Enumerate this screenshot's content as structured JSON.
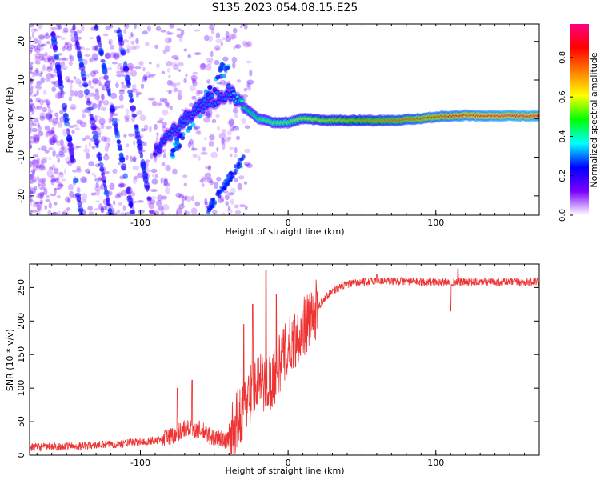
{
  "title": "S135.2023.054.08.15.E25",
  "chart_data": [
    {
      "type": "heatmap",
      "xlabel": "Height of straight line (km)",
      "ylabel": "Frequency (Hz)",
      "xlim": [
        -175,
        170
      ],
      "ylim": [
        -25,
        24.5
      ],
      "x_ticks": [
        "-100",
        "0",
        "100"
      ],
      "x_tick_values": [
        -100,
        0,
        100
      ],
      "y_ticks": [
        "-20",
        "-10",
        "0",
        "10",
        "20"
      ],
      "y_tick_values": [
        -20,
        -10,
        0,
        10,
        20
      ],
      "colorbar": {
        "label": "Normalized spectral amplitude",
        "range": [
          0,
          0.97
        ],
        "ticks": [
          "0.0",
          "0.2",
          "0.4",
          "0.6",
          "0.8"
        ],
        "tick_values": [
          0.0,
          0.2,
          0.4,
          0.6,
          0.8
        ],
        "colors": [
          "#ffffff",
          "#7a00ff",
          "#0000ff",
          "#00ffff",
          "#00ff00",
          "#ffff00",
          "#ff8000",
          "#ff0000",
          "#ff0080"
        ]
      },
      "ridge": {
        "x": [
          -90,
          -80,
          -70,
          -60,
          -50,
          -40,
          -30,
          -20,
          -10,
          0,
          10,
          30,
          50,
          70,
          90,
          100,
          120,
          150,
          170
        ],
        "frequency": [
          -9,
          -4,
          0,
          3,
          5,
          7,
          3,
          0,
          -1,
          -1,
          0,
          -0.5,
          -0.5,
          -0.5,
          0,
          0.5,
          0.8,
          0.7,
          0.7
        ],
        "amplitude": [
          0.25,
          0.3,
          0.3,
          0.3,
          0.3,
          0.3,
          0.45,
          0.5,
          0.55,
          0.55,
          0.6,
          0.65,
          0.7,
          0.75,
          0.8,
          0.82,
          0.85,
          0.9,
          0.9
        ]
      }
    },
    {
      "type": "line",
      "xlabel": "Height of straight line (km)",
      "ylabel": "SNR (10 * v/v)",
      "xlim": [
        -175,
        170
      ],
      "ylim": [
        0,
        285
      ],
      "x_ticks": [
        "-100",
        "0",
        "100"
      ],
      "x_tick_values": [
        -100,
        0,
        100
      ],
      "y_ticks": [
        "0",
        "50",
        "100",
        "150",
        "200",
        "250"
      ],
      "y_tick_values": [
        0,
        50,
        100,
        150,
        200,
        250
      ],
      "color": "#ee3333",
      "trend": {
        "x": [
          -175,
          -150,
          -120,
          -100,
          -90,
          -80,
          -70,
          -60,
          -50,
          -40,
          -35,
          -30,
          -25,
          -20,
          -15,
          -10,
          -5,
          0,
          5,
          10,
          15,
          20,
          25,
          30,
          40,
          60,
          100,
          170
        ],
        "y": [
          12,
          13,
          16,
          20,
          22,
          28,
          40,
          38,
          25,
          22,
          50,
          70,
          95,
          110,
          105,
          115,
          140,
          160,
          175,
          190,
          205,
          220,
          235,
          245,
          255,
          260,
          258,
          258
        ]
      },
      "spikes": [
        {
          "x": -75,
          "y": 100
        },
        {
          "x": -65,
          "y": 112
        },
        {
          "x": -30,
          "y": 195
        },
        {
          "x": -24,
          "y": 225
        },
        {
          "x": -15,
          "y": 275
        },
        {
          "x": -8,
          "y": 240
        },
        {
          "x": 60,
          "y": 270
        },
        {
          "x": 115,
          "y": 278
        },
        {
          "x": 110,
          "y": 215
        }
      ]
    }
  ]
}
